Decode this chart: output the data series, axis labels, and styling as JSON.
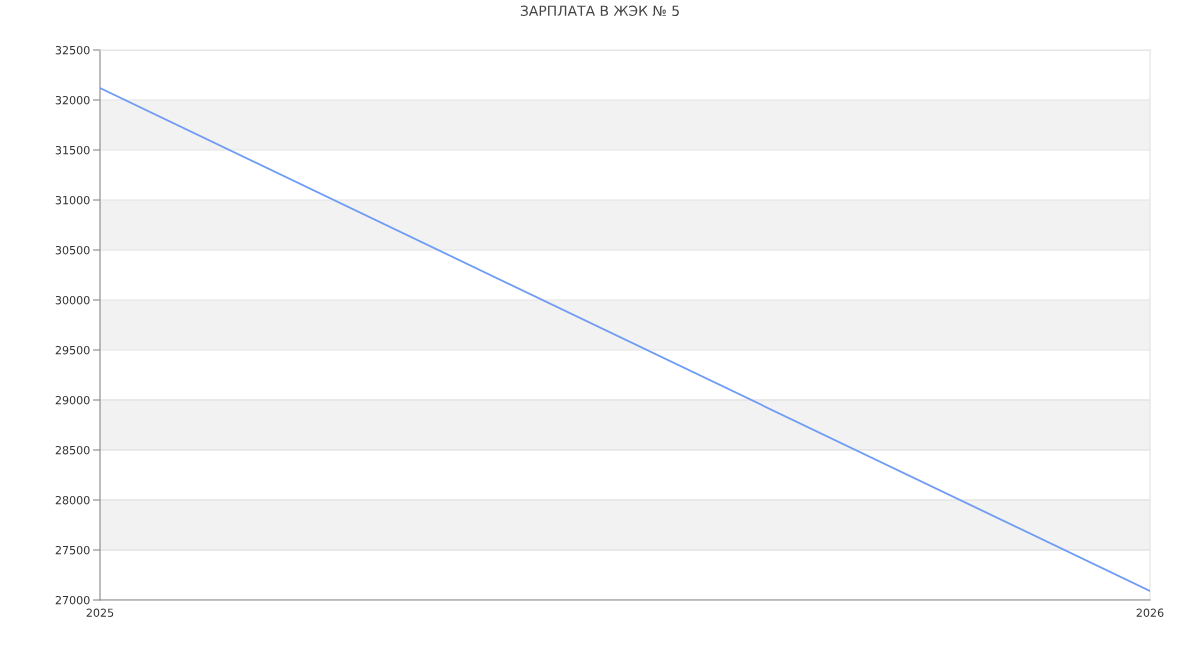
{
  "chart_data": {
    "type": "line",
    "title": "ЗАРПЛАТА В ЖЭК № 5",
    "x": [
      2025,
      2026
    ],
    "series": [
      {
        "color": "#6e9cf5",
        "values": [
          32120,
          27090
        ]
      }
    ],
    "xlim": [
      2025,
      2026
    ],
    "xticks": [
      2025,
      2026
    ],
    "ylim": [
      27000,
      32500
    ],
    "yticks": [
      27000,
      27500,
      28000,
      28500,
      29000,
      29500,
      30000,
      30500,
      31000,
      31500,
      32000,
      32500
    ],
    "bands": [
      {
        "axis": "y",
        "from": 27500,
        "to": 28000,
        "color": "#f2f2f2"
      },
      {
        "axis": "y",
        "from": 28500,
        "to": 29000,
        "color": "#f2f2f2"
      },
      {
        "axis": "y",
        "from": 29500,
        "to": 30000,
        "color": "#f2f2f2"
      },
      {
        "axis": "y",
        "from": 30500,
        "to": 31000,
        "color": "#f2f2f2"
      },
      {
        "axis": "y",
        "from": 31500,
        "to": 32000,
        "color": "#f2f2f2"
      }
    ],
    "grid": "y",
    "marker": "none",
    "line_style": "solid"
  }
}
